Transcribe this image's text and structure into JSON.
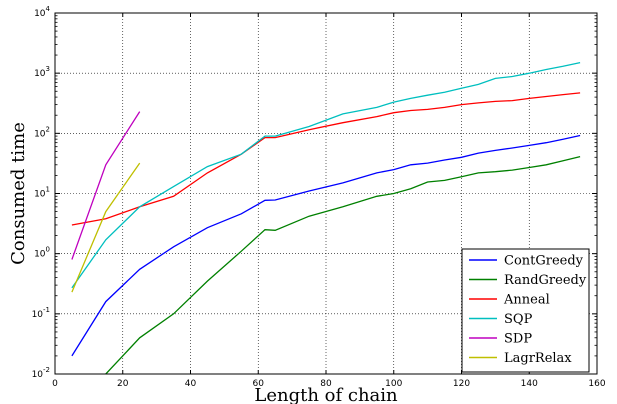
{
  "chart_data": {
    "type": "line",
    "xlabel": "Length of chain",
    "ylabel": "Consumed time",
    "xlim": [
      0,
      160
    ],
    "ylim_log10": [
      -2,
      4
    ],
    "yscale": "log",
    "x_ticks": [
      0,
      20,
      40,
      60,
      80,
      100,
      120,
      140,
      160
    ],
    "x_tick_labels": [
      "0",
      "20",
      "40",
      "60",
      "80",
      "100",
      "120",
      "140",
      "160"
    ],
    "y_ticks_log10": [
      -2,
      -1,
      0,
      1,
      2,
      3,
      4
    ],
    "y_tick_labels": [
      {
        "base": "10",
        "exp": "-2"
      },
      {
        "base": "10",
        "exp": "-1"
      },
      {
        "base": "10",
        "exp": "0"
      },
      {
        "base": "10",
        "exp": "1"
      },
      {
        "base": "10",
        "exp": "2"
      },
      {
        "base": "10",
        "exp": "3"
      },
      {
        "base": "10",
        "exp": "4"
      }
    ],
    "grid": true,
    "legend_position": "bottom-right",
    "series": [
      {
        "name": "ContGreedy",
        "color": "#0000ff",
        "x": [
          5,
          15,
          25,
          35,
          45,
          55,
          62,
          65,
          75,
          85,
          95,
          100,
          105,
          110,
          115,
          120,
          125,
          130,
          135,
          140,
          145,
          150,
          155
        ],
        "y": [
          0.02,
          0.16,
          0.55,
          1.3,
          2.7,
          4.6,
          7.7,
          7.8,
          11,
          15,
          22,
          25,
          30,
          32,
          36,
          40,
          47,
          52,
          57,
          63,
          70,
          80,
          92
        ]
      },
      {
        "name": "RandGreedy",
        "color": "#008000",
        "x": [
          15,
          25,
          35,
          45,
          55,
          62,
          65,
          75,
          85,
          95,
          100,
          105,
          110,
          115,
          120,
          125,
          130,
          135,
          140,
          145,
          150,
          155
        ],
        "y": [
          0.01,
          0.04,
          0.1,
          0.35,
          1.1,
          2.5,
          2.45,
          4.2,
          6,
          9,
          10,
          12,
          15.5,
          16.5,
          19,
          22,
          23,
          24.5,
          27,
          30,
          35,
          41
        ]
      },
      {
        "name": "Anneal",
        "color": "#ff0000",
        "x": [
          5,
          15,
          25,
          35,
          45,
          55,
          62,
          65,
          75,
          85,
          95,
          100,
          105,
          110,
          115,
          120,
          125,
          130,
          135,
          140,
          145,
          150,
          155
        ],
        "y": [
          3,
          3.8,
          6,
          9,
          22,
          45,
          85,
          85,
          115,
          150,
          190,
          220,
          240,
          250,
          270,
          300,
          320,
          340,
          350,
          380,
          410,
          440,
          470
        ]
      },
      {
        "name": "SQP",
        "color": "#00bfbf",
        "x": [
          5,
          15,
          25,
          35,
          45,
          55,
          62,
          65,
          75,
          85,
          95,
          100,
          105,
          110,
          115,
          120,
          125,
          130,
          135,
          140,
          145,
          150,
          155
        ],
        "y": [
          0.27,
          1.7,
          6,
          13,
          28,
          45,
          90,
          90,
          130,
          210,
          270,
          330,
          380,
          430,
          480,
          560,
          650,
          820,
          880,
          1000,
          1150,
          1300,
          1500
        ]
      },
      {
        "name": "SDP",
        "color": "#bf00bf",
        "x": [
          5,
          15,
          25
        ],
        "y": [
          0.8,
          30,
          230
        ]
      },
      {
        "name": "LagrRelax",
        "color": "#bfbf00",
        "x": [
          5,
          15,
          25
        ],
        "y": [
          0.23,
          5,
          32
        ]
      }
    ]
  }
}
